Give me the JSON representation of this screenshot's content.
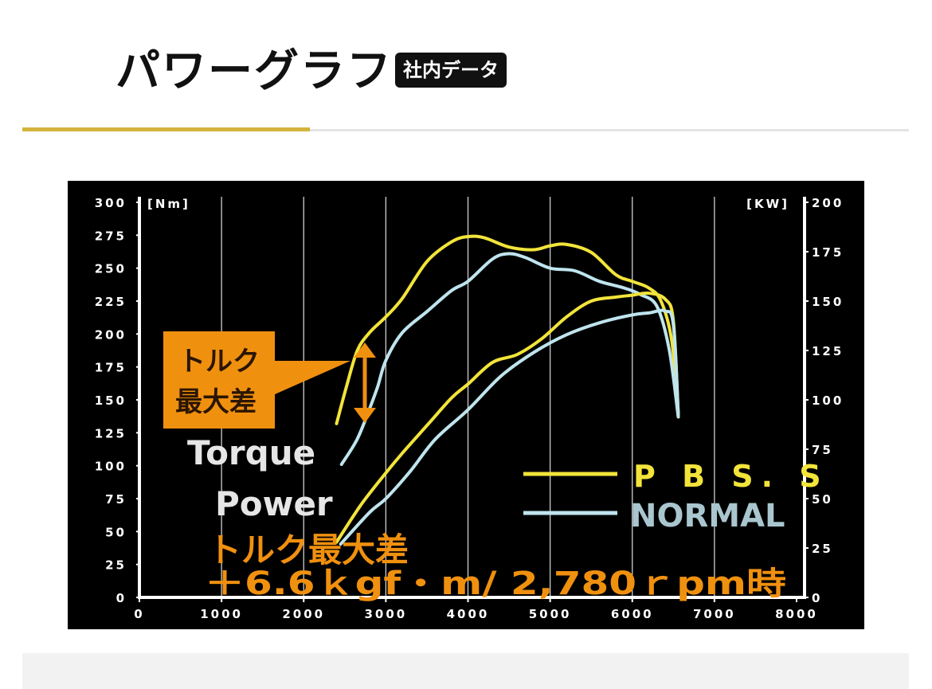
{
  "header": {
    "title": "パワーグラフ",
    "badge": "社内データ"
  },
  "colors": {
    "accent": "#d5b33e",
    "pbss_line": "#f2e43a",
    "normal_line": "#bfe4ee",
    "annotation": "#f0900f"
  },
  "chart_data": {
    "type": "line",
    "x_axis": {
      "label": "",
      "range": [
        0,
        8000
      ],
      "ticks": [
        0,
        1000,
        2000,
        3000,
        4000,
        5000,
        6000,
        7000,
        8000
      ]
    },
    "y_left": {
      "unit": "[Nm]",
      "range": [
        0,
        300
      ],
      "ticks": [
        0,
        25,
        50,
        75,
        100,
        125,
        150,
        175,
        200,
        225,
        250,
        275,
        300
      ]
    },
    "y_right": {
      "unit": "[KW]",
      "range": [
        0,
        200
      ],
      "ticks": [
        0,
        25,
        50,
        75,
        100,
        125,
        150,
        175,
        200
      ]
    },
    "grid": "vertical",
    "legend": {
      "placement": "bottom-right",
      "items": [
        {
          "label": "P B S. S",
          "color": "#f2e43a"
        },
        {
          "label": "NORMAL",
          "color": "#bfe4ee"
        }
      ]
    },
    "annotations": {
      "torque_label": "Torque",
      "power_label": "Power",
      "callout_line1": "トルク",
      "callout_line2": "最大差",
      "summary_line1": "トルク最大差",
      "summary_line2": "＋6.6ｋgf・m/ 2,780ｒpm時"
    },
    "series": [
      {
        "name": "P B S. S",
        "kind": "torque",
        "axis": "left",
        "color": "#f2e43a",
        "x": [
          2400,
          2520,
          2650,
          2800,
          3000,
          3200,
          3500,
          3800,
          4000,
          4200,
          4500,
          4800,
          5000,
          5200,
          5500,
          5800,
          6000,
          6200,
          6350,
          6480,
          6560
        ],
        "y": [
          132,
          160,
          187,
          201,
          213,
          227,
          255,
          270,
          274,
          273,
          266,
          264,
          267,
          268,
          262,
          245,
          240,
          235,
          225,
          195,
          140
        ]
      },
      {
        "name": "NORMAL",
        "kind": "torque",
        "axis": "left",
        "color": "#bfe4ee",
        "x": [
          2460,
          2650,
          2800,
          2900,
          3000,
          3200,
          3500,
          3800,
          4000,
          4300,
          4500,
          4700,
          5000,
          5300,
          5600,
          5900,
          6100,
          6300,
          6450,
          6560
        ],
        "y": [
          101,
          120,
          143,
          160,
          180,
          201,
          217,
          233,
          240,
          257,
          261,
          258,
          250,
          248,
          240,
          235,
          230,
          221,
          188,
          137
        ]
      },
      {
        "name": "P B S. S",
        "kind": "power",
        "axis": "right",
        "color": "#f2e43a",
        "x": [
          2400,
          2700,
          3000,
          3200,
          3500,
          3800,
          4000,
          4300,
          4600,
          4900,
          5200,
          5500,
          5800,
          6000,
          6200,
          6400,
          6500,
          6560
        ],
        "y": [
          28,
          47,
          63,
          73,
          87,
          101,
          108,
          119,
          123,
          131,
          142,
          150,
          152,
          153,
          154,
          151,
          140,
          92
        ]
      },
      {
        "name": "NORMAL",
        "kind": "power",
        "axis": "right",
        "color": "#bfe4ee",
        "x": [
          2450,
          2800,
          3000,
          3300,
          3600,
          4000,
          4400,
          4800,
          5200,
          5600,
          6000,
          6200,
          6400,
          6500,
          6560
        ],
        "y": [
          27,
          43,
          50,
          64,
          80,
          95,
          112,
          124,
          133,
          139,
          143,
          144,
          145,
          138,
          92
        ]
      }
    ]
  }
}
